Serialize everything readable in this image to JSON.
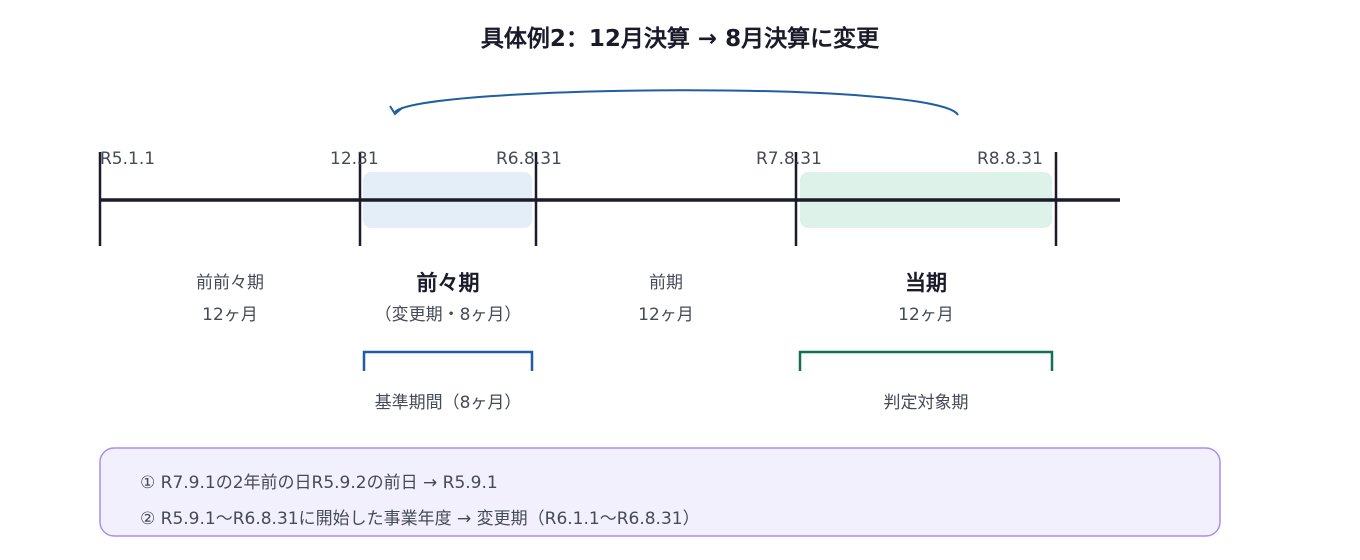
{
  "title": "具体例2：12月決算 → 8月決算に変更",
  "dates": [
    "R5.1.1",
    "12.31",
    "R6.8.31",
    "R7.8.31",
    "R8.8.31"
  ],
  "periods": [
    {
      "name": "前前々期",
      "sub": "12ヶ月"
    },
    {
      "name": "前々期",
      "sub": "（変更期・8ヶ月）"
    },
    {
      "name": "前期",
      "sub": "12ヶ月"
    },
    {
      "name": "当期",
      "sub": "12ヶ月"
    }
  ],
  "brackets": {
    "base": "基準期間（8ヶ月）",
    "target": "判定対象期"
  },
  "notes": [
    "① R7.9.1の2年前の日R5.9.2の前日 → R5.9.1",
    "② R5.9.1～R6.8.31に開始した事業年度 → 変更期（R6.1.1～R6.8.31）"
  ],
  "colors": {
    "axis": "#1c1b2b",
    "base": "#1f5fa0",
    "target": "#137050",
    "base_fill": "#e4eef8",
    "target_fill": "#ddf3ea",
    "note_border": "#a88ef0",
    "note_fill": "#f3f0fd"
  }
}
